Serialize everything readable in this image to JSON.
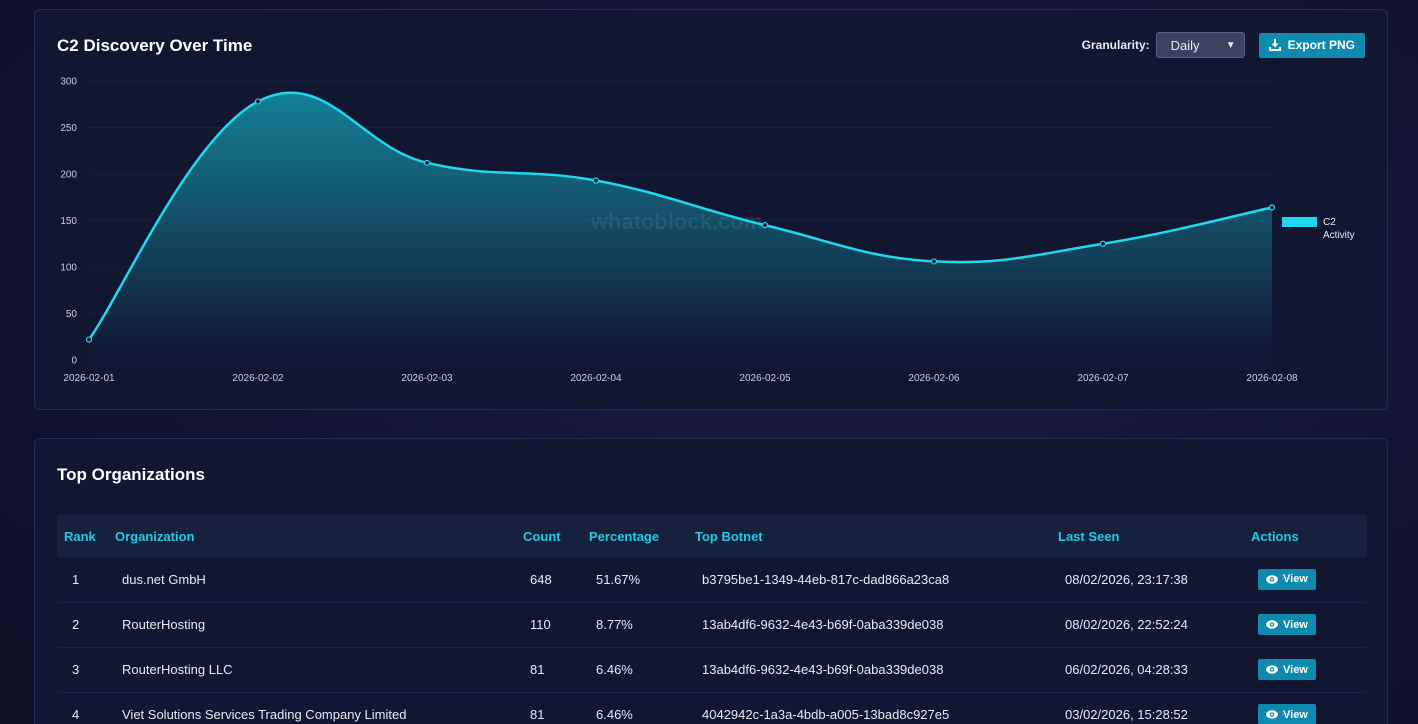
{
  "chart_card": {
    "title": "C2 Discovery Over Time",
    "granularity_label": "Granularity:",
    "granularity_value": "Daily",
    "export_label": "Export PNG",
    "watermark": "whatoblock.com"
  },
  "chart_data": {
    "type": "line",
    "categories": [
      "2026-02-01",
      "2026-02-02",
      "2026-02-03",
      "2026-02-04",
      "2026-02-05",
      "2026-02-06",
      "2026-02-07",
      "2026-02-08"
    ],
    "series": [
      {
        "name": "C2 Activity",
        "values": [
          22,
          278,
          212,
          193,
          145,
          106,
          125,
          164
        ]
      }
    ],
    "y_ticks": [
      0,
      50,
      100,
      150,
      200,
      250,
      300
    ],
    "ylim": [
      0,
      300
    ],
    "legend": "right",
    "color": "#1fd8ef"
  },
  "table_card": {
    "title": "Top Organizations",
    "columns": [
      "Rank",
      "Organization",
      "Count",
      "Percentage",
      "Top Botnet",
      "Last Seen",
      "Actions"
    ],
    "view_label": "View",
    "rows": [
      {
        "rank": "1",
        "org": "dus.net GmbH",
        "count": "648",
        "pct": "51.67%",
        "botnet": "b3795be1-1349-44eb-817c-dad866a23ca8",
        "last_seen": "08/02/2026, 23:17:38"
      },
      {
        "rank": "2",
        "org": "RouterHosting",
        "count": "110",
        "pct": "8.77%",
        "botnet": "13ab4df6-9632-4e43-b69f-0aba339de038",
        "last_seen": "08/02/2026, 22:52:24"
      },
      {
        "rank": "3",
        "org": "RouterHosting LLC",
        "count": "81",
        "pct": "6.46%",
        "botnet": "13ab4df6-9632-4e43-b69f-0aba339de038",
        "last_seen": "06/02/2026, 04:28:33"
      },
      {
        "rank": "4",
        "org": "Viet Solutions Services Trading Company Limited",
        "count": "81",
        "pct": "6.46%",
        "botnet": "4042942c-1a3a-4bdb-a005-13bad8c927e5",
        "last_seen": "03/02/2026, 15:28:52"
      }
    ]
  }
}
